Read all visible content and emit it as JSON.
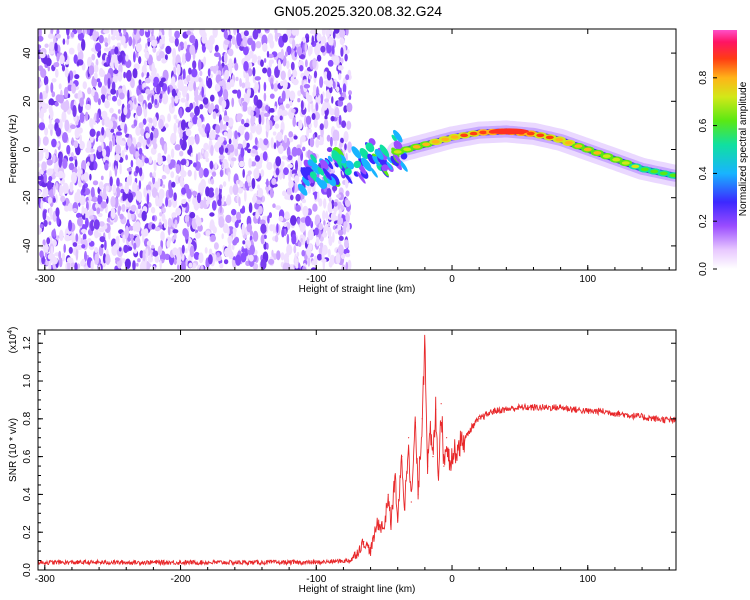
{
  "figure": {
    "title": "GN05.2025.320.08.32.G24"
  },
  "chart_data": [
    {
      "type": "heatmap",
      "title": "GN05.2025.320.08.32.G24",
      "xlabel": "Height of straight line (km)",
      "ylabel": "Frequency (Hz)",
      "xlim": [
        -305,
        165
      ],
      "ylim": [
        -50,
        50
      ],
      "xticks": [
        -300,
        -200,
        -100,
        0,
        100
      ],
      "xtick_labels": [
        "-300",
        "-200",
        "-100",
        "0",
        "100"
      ],
      "yticks": [
        -40,
        -20,
        0,
        20,
        40
      ],
      "ytick_labels": [
        "-40",
        "-20",
        "0",
        "20",
        "40"
      ],
      "noise_region_km": [
        -305,
        -75
      ],
      "trace": {
        "x": [
          -100,
          -80,
          -60,
          -40,
          -20,
          0,
          20,
          40,
          60,
          80,
          100,
          120,
          140,
          165
        ],
        "y": [
          -10,
          -7,
          -4,
          -1,
          2,
          5,
          7,
          7.5,
          6.5,
          4,
          0,
          -4,
          -8,
          -11
        ]
      },
      "colorbar": {
        "label": "Normalized spectral amplitude",
        "range": [
          0,
          1
        ],
        "ticks": [
          0.0,
          0.2,
          0.4,
          0.6,
          0.8
        ],
        "tick_labels": [
          "0.0",
          "0.2",
          "0.4",
          "0.6",
          "0.8"
        ]
      }
    },
    {
      "type": "line",
      "xlabel": "Height of straight line (km)",
      "ylabel": "SNR (10 * v/v)",
      "scale_label": "(x10",
      "scale_exp": "4",
      "scale_close": ")",
      "xlim": [
        -305,
        165
      ],
      "ylim": [
        0,
        1.27
      ],
      "xticks": [
        -300,
        -200,
        -100,
        0,
        100
      ],
      "xtick_labels": [
        "-300",
        "-200",
        "-100",
        "0",
        "100"
      ],
      "yticks": [
        0.0,
        0.2,
        0.4,
        0.6,
        0.8,
        1.0,
        1.2
      ],
      "ytick_labels": [
        "0.0",
        "0.2",
        "0.4",
        "0.6",
        "0.8",
        "1.0",
        "1.2"
      ],
      "color": "#e8282a",
      "series": [
        {
          "name": "SNR",
          "x": [
            -305,
            -200,
            -100,
            -75,
            -70,
            -65,
            -60,
            -55,
            -50,
            -47,
            -45,
            -42,
            -40,
            -37,
            -35,
            -32,
            -30,
            -27,
            -25,
            -22,
            -20,
            -18,
            -16,
            -14,
            -12,
            -10,
            -8,
            -6,
            -4,
            -2,
            0,
            5,
            10,
            15,
            20,
            25,
            30,
            40,
            50,
            60,
            70,
            80,
            90,
            100,
            110,
            120,
            130,
            140,
            150,
            165
          ],
          "y": [
            0.04,
            0.04,
            0.04,
            0.05,
            0.09,
            0.15,
            0.1,
            0.25,
            0.22,
            0.4,
            0.24,
            0.5,
            0.26,
            0.6,
            0.32,
            0.7,
            0.36,
            0.78,
            0.4,
            0.8,
            1.27,
            0.55,
            0.72,
            0.6,
            0.85,
            0.5,
            0.88,
            0.55,
            0.7,
            0.58,
            0.6,
            0.66,
            0.7,
            0.76,
            0.8,
            0.82,
            0.84,
            0.85,
            0.86,
            0.86,
            0.86,
            0.86,
            0.85,
            0.84,
            0.84,
            0.83,
            0.82,
            0.81,
            0.8,
            0.79
          ]
        }
      ]
    }
  ]
}
